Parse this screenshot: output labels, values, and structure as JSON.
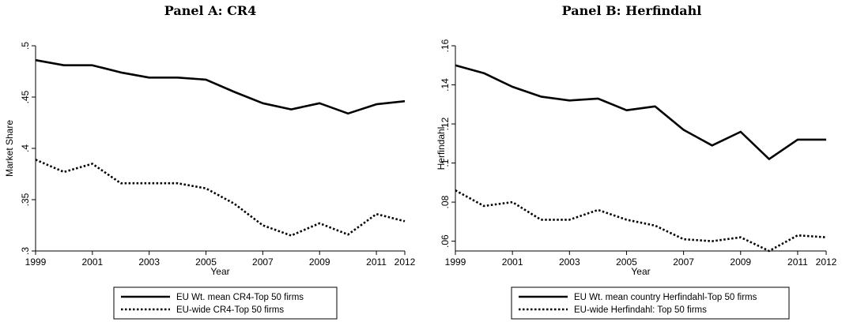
{
  "chart_data": [
    {
      "type": "line",
      "title": "Panel A: CR4",
      "xlabel": "Year",
      "ylabel": "Market Share",
      "x": [
        1999,
        2000,
        2001,
        2002,
        2003,
        2004,
        2005,
        2006,
        2007,
        2008,
        2009,
        2010,
        2011,
        2012
      ],
      "xticks": [
        1999,
        2001,
        2003,
        2005,
        2007,
        2009,
        2011,
        2012
      ],
      "xlim": [
        1999,
        2012
      ],
      "yticks": [
        0.3,
        0.35,
        0.4,
        0.45,
        0.5
      ],
      "ytick_labels": [
        ".3",
        ".35",
        ".4",
        ".45",
        ".5"
      ],
      "ylim": [
        0.3,
        0.5
      ],
      "grid": false,
      "legend_position": "bottom",
      "series": [
        {
          "name": "EU Wt. mean CR4-Top 50 firms",
          "style": "solid",
          "values": [
            0.486,
            0.481,
            0.481,
            0.474,
            0.469,
            0.469,
            0.467,
            0.455,
            0.444,
            0.438,
            0.444,
            0.434,
            0.443,
            0.446
          ]
        },
        {
          "name": "EU-wide CR4-Top 50 firms",
          "style": "dotted",
          "values": [
            0.389,
            0.377,
            0.385,
            0.366,
            0.366,
            0.366,
            0.361,
            0.346,
            0.325,
            0.315,
            0.327,
            0.316,
            0.336,
            0.329
          ]
        }
      ]
    },
    {
      "type": "line",
      "title": "Panel B: Herfindahl",
      "xlabel": "Year",
      "ylabel": "Herfindahl",
      "x": [
        1999,
        2000,
        2001,
        2002,
        2003,
        2004,
        2005,
        2006,
        2007,
        2008,
        2009,
        2010,
        2011,
        2012
      ],
      "xticks": [
        1999,
        2001,
        2003,
        2005,
        2007,
        2009,
        2011,
        2012
      ],
      "xlim": [
        1999,
        2012
      ],
      "yticks": [
        0.06,
        0.08,
        0.1,
        0.12,
        0.14,
        0.16
      ],
      "ytick_labels": [
        ".06",
        ".08",
        ".1",
        ".12",
        ".14",
        ".16"
      ],
      "ylim": [
        0.055,
        0.16
      ],
      "grid": false,
      "legend_position": "bottom",
      "series": [
        {
          "name": "EU Wt. mean country Herfindahl-Top 50 firms",
          "style": "solid",
          "values": [
            0.15,
            0.146,
            0.139,
            0.134,
            0.132,
            0.133,
            0.127,
            0.129,
            0.117,
            0.109,
            0.116,
            0.102,
            0.112,
            0.112
          ]
        },
        {
          "name": "EU-wide Herfindahl: Top 50 firms",
          "style": "dotted",
          "values": [
            0.086,
            0.078,
            0.08,
            0.071,
            0.071,
            0.076,
            0.071,
            0.068,
            0.061,
            0.06,
            0.062,
            0.055,
            0.063,
            0.062
          ]
        }
      ]
    }
  ]
}
